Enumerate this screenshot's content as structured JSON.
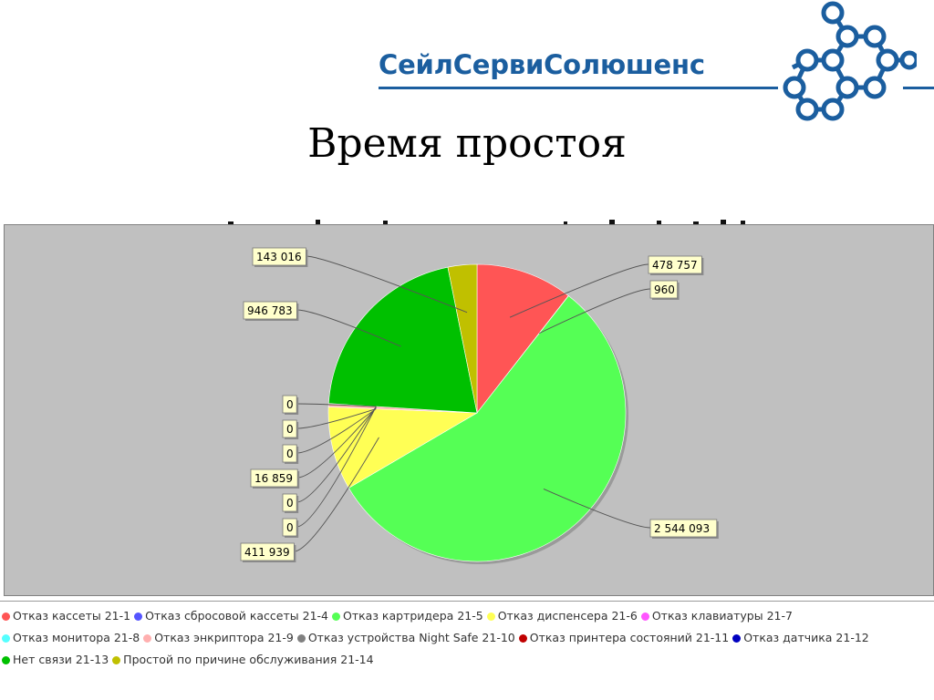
{
  "logo": {
    "text": "СейлСервиСолюшенс",
    "color": "#1b5e9f"
  },
  "title": "Время простоя",
  "colors": {
    "panel_bg": "#c0c0c0",
    "label_bg": "#ffffcc"
  },
  "chart_data": {
    "type": "pie",
    "categories": [
      "Отказ кассеты 21-1",
      "Отказ сбросовой кассеты 21-4",
      "Отказ картридера 21-5",
      "Отказ диспенсера 21-6",
      "Отказ клавиатуры 21-7",
      "Отказ монитора 21-8",
      "Отказ энкриптора 21-9",
      "Отказ устройства Night Safe 21-10",
      "Отказ принтера состояний 21-11",
      "Отказ датчика 21-12",
      "Нет связи 21-13",
      "Простой по причине обслуживания 21-14"
    ],
    "values": [
      478757,
      960,
      2544093,
      411939,
      0,
      0,
      16859,
      0,
      0,
      0,
      946783,
      143016
    ],
    "value_labels": [
      "478 757",
      "960",
      "2 544 093",
      "411 939",
      "0",
      "0",
      "16 859",
      "0",
      "0",
      "0",
      "946 783",
      "143 016"
    ],
    "colors": [
      "#ff5555",
      "#5555ff",
      "#55ff55",
      "#ffff55",
      "#ff55ff",
      "#55ffff",
      "#ffafaf",
      "#808080",
      "#c00000",
      "#0000c0",
      "#00c000",
      "#c0c000"
    ],
    "title": "",
    "legend_position": "bottom"
  }
}
